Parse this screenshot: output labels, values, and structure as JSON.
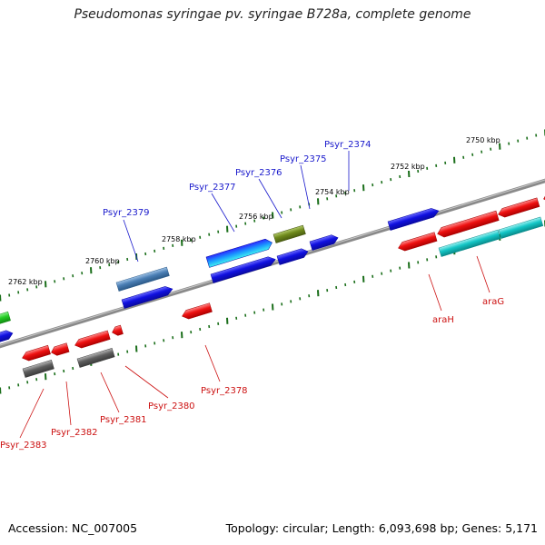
{
  "title": "Pseudomonas syringae pv. syringae B728a, complete genome",
  "accession_text": "Accession: NC_007005",
  "summary_text": "Topology: circular; Length: 6,093,698 bp; Genes: 5,171",
  "scale_labels": [
    "2750 kbp",
    "2752 kbp",
    "2754 kbp",
    "2756 kbp",
    "2758 kbp",
    "2760 kbp",
    "2762 kbp"
  ],
  "gene_labels_top": [
    "Psyr_2374",
    "Psyr_2375",
    "Psyr_2376",
    "Psyr_2377",
    "Psyr_2379"
  ],
  "gene_labels_bottom": [
    "araG",
    "araH",
    "Psyr_2378",
    "Psyr_2380",
    "Psyr_2381",
    "Psyr_2382",
    "Psyr_2383"
  ],
  "colors": {
    "forward_gene": "#1010e0",
    "reverse_gene": "#ee1111",
    "cyan_gene": "#13c6c6",
    "steel_gene": "#4a7eb4",
    "olive_gene": "#6f8a1c",
    "green_gene": "#22cc22",
    "gray_gene": "#5e5e5e",
    "backbone": "#8a8a8a",
    "tick_green": "#1a6e1a",
    "top_label": "#1a1acc",
    "bottom_label": "#cc1111"
  }
}
